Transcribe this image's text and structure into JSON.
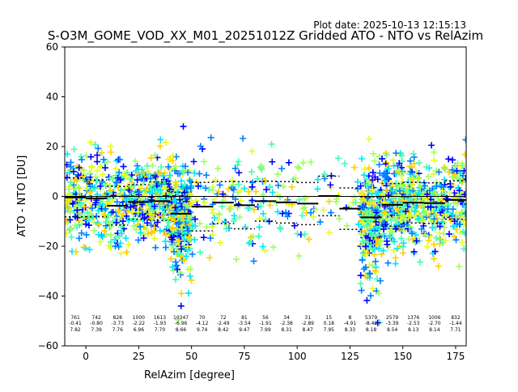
{
  "plot_date": "Plot date: 2025-10-13 12:15:13",
  "chart_data": {
    "type": "scatter",
    "title": "S-O3M_GOME_VOD_XX_M01_20251012Z Gridded ATO - NTO vs RelAzim",
    "xlabel": "RelAzim [degree]",
    "ylabel": "ATO - NTO [DU]",
    "xlim": [
      -10,
      180
    ],
    "ylim": [
      -60,
      60
    ],
    "xticks": [
      0,
      25,
      50,
      75,
      100,
      125,
      150,
      175
    ],
    "yticks": [
      -60,
      -40,
      -20,
      0,
      20,
      40,
      60
    ],
    "grid": false,
    "zero_line": 0,
    "marker": "+",
    "colormap": [
      "#0000ff",
      "#0080ff",
      "#00e5ff",
      "#40ffb0",
      "#9fff60",
      "#e0ff20",
      "#ffd000"
    ],
    "bins": [
      {
        "x_start": -10,
        "x_end": 0,
        "center": -5,
        "count": "761",
        "mean": -0.41,
        "std": 7.82,
        "count_label": "761",
        "mean_label": "-0.41",
        "std_label": "7.82"
      },
      {
        "x_start": 0,
        "x_end": 10,
        "center": 5,
        "count": "742",
        "mean": -0.8,
        "std": 7.39,
        "count_label": "742",
        "mean_label": "-0.80",
        "std_label": "7.39"
      },
      {
        "x_start": 10,
        "x_end": 20,
        "center": 15,
        "count": "828",
        "mean": -3.73,
        "std": 7.76,
        "count_label": "828",
        "mean_label": "-3.73",
        "std_label": "7.76"
      },
      {
        "x_start": 20,
        "x_end": 30,
        "center": 25,
        "count": "1000",
        "mean": -2.22,
        "std": 6.96,
        "count_label": "1000",
        "mean_label": "-2.22",
        "std_label": "6.96"
      },
      {
        "x_start": 30,
        "x_end": 40,
        "center": 35,
        "count": "1613",
        "mean": -1.93,
        "std": 7.7,
        "count_label": "1613",
        "mean_label": "-1.93",
        "std_label": "7.70"
      },
      {
        "x_start": 40,
        "x_end": 50,
        "center": 45,
        "count": "10347",
        "mean": -6.96,
        "std": 8.66,
        "count_label": "10347",
        "mean_label": "-6.96",
        "std_label": "8.66"
      },
      {
        "x_start": 50,
        "x_end": 60,
        "center": 55,
        "count": "70",
        "mean": -4.12,
        "std": 9.74,
        "count_label": "70",
        "mean_label": "-4.12",
        "std_label": "9.74"
      },
      {
        "x_start": 60,
        "x_end": 70,
        "center": 65,
        "count": "72",
        "mean": -2.49,
        "std": 8.42,
        "count_label": "72",
        "mean_label": "-2.49",
        "std_label": "8.42"
      },
      {
        "x_start": 70,
        "x_end": 80,
        "center": 75,
        "count": "81",
        "mean": -3.54,
        "std": 9.47,
        "count_label": "81",
        "mean_label": "-3.54",
        "std_label": "9.47"
      },
      {
        "x_start": 80,
        "x_end": 90,
        "center": 85,
        "count": "56",
        "mean": -1.91,
        "std": 7.99,
        "count_label": "56",
        "mean_label": "-1.91",
        "std_label": "7.99"
      },
      {
        "x_start": 90,
        "x_end": 100,
        "center": 95,
        "count": "34",
        "mean": -2.38,
        "std": 8.31,
        "count_label": "34",
        "mean_label": "-2.38",
        "std_label": "8.31"
      },
      {
        "x_start": 100,
        "x_end": 110,
        "center": 105,
        "count": "31",
        "mean": -2.89,
        "std": 8.47,
        "count_label": "31",
        "mean_label": "-2.89",
        "std_label": "8.47"
      },
      {
        "x_start": 110,
        "x_end": 120,
        "center": 115,
        "count": "15",
        "mean": 0.18,
        "std": 7.95,
        "count_label": "15",
        "mean_label": "0.18",
        "std_label": "7.95"
      },
      {
        "x_start": 120,
        "x_end": 130,
        "center": 125,
        "count": "8",
        "mean": -4.91,
        "std": 8.33,
        "count_label": "8",
        "mean_label": "-4.91",
        "std_label": "8.33"
      },
      {
        "x_start": 130,
        "x_end": 140,
        "center": 135,
        "count": "5379",
        "mean": -8.42,
        "std": 8.18,
        "count_label": "5379",
        "mean_label": "-8.42",
        "std_label": "8.18"
      },
      {
        "x_start": 140,
        "x_end": 150,
        "center": 145,
        "count": "2579",
        "mean": -3.39,
        "std": 8.54,
        "count_label": "2579",
        "mean_label": "-3.39",
        "std_label": "8.54"
      },
      {
        "x_start": 150,
        "x_end": 160,
        "center": 155,
        "count": "1376",
        "mean": -2.53,
        "std": 8.13,
        "count_label": "1376",
        "mean_label": "-2.53",
        "std_label": "8.13"
      },
      {
        "x_start": 160,
        "x_end": 170,
        "center": 165,
        "count": "1006",
        "mean": -2.7,
        "std": 8.14,
        "count_label": "1006",
        "mean_label": "-2.70",
        "std_label": "8.14"
      },
      {
        "x_start": 170,
        "x_end": 180,
        "center": 175,
        "count": "832",
        "mean": -1.44,
        "std": 7.71,
        "count_label": "832",
        "mean_label": "-1.44",
        "std_label": "7.71"
      }
    ]
  }
}
